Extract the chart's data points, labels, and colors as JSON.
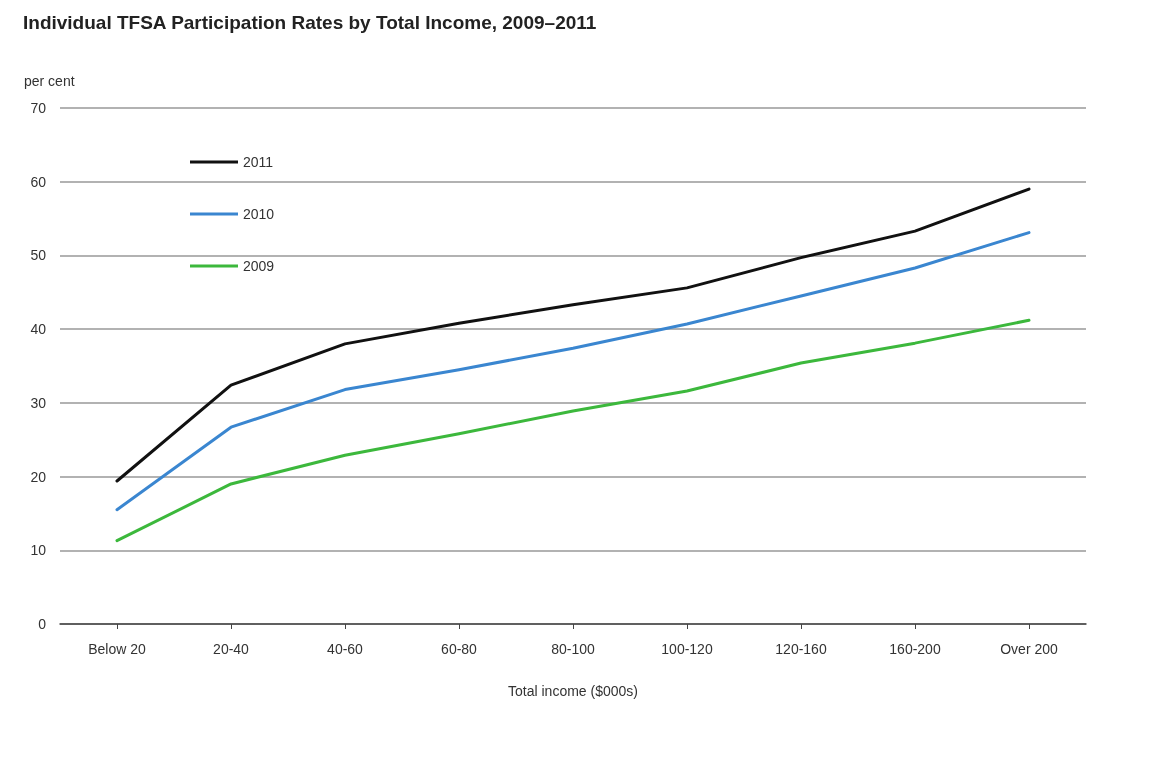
{
  "chart_data": {
    "type": "line",
    "title": "Individual TFSA Participation Rates by Total Income, 2009–2011",
    "xlabel": "Total income ($000s)",
    "ylabel": "per cent",
    "categories": [
      "Below 20",
      "20-40",
      "40-60",
      "60-80",
      "80-100",
      "100-120",
      "120-160",
      "160-200",
      "Over 200"
    ],
    "series": [
      {
        "name": "2011",
        "color": "#111111",
        "values": [
          19.4,
          32.4,
          38,
          40.8,
          43.3,
          45.6,
          49.7,
          53.3,
          59
        ]
      },
      {
        "name": "2010",
        "color": "#3a86d0",
        "values": [
          15.5,
          26.7,
          31.8,
          34.5,
          37.4,
          40.7,
          44.5,
          48.3,
          53.1
        ]
      },
      {
        "name": "2009",
        "color": "#3cb83c",
        "values": [
          11.3,
          19,
          22.9,
          25.8,
          28.9,
          31.6,
          35.4,
          38.1,
          41.2
        ]
      }
    ],
    "ylim": [
      0,
      70
    ],
    "yticks": [
      0,
      10,
      20,
      30,
      40,
      50,
      60,
      70
    ],
    "grid": "y",
    "legend": "top left",
    "marker": "none",
    "line_style": "solid"
  }
}
